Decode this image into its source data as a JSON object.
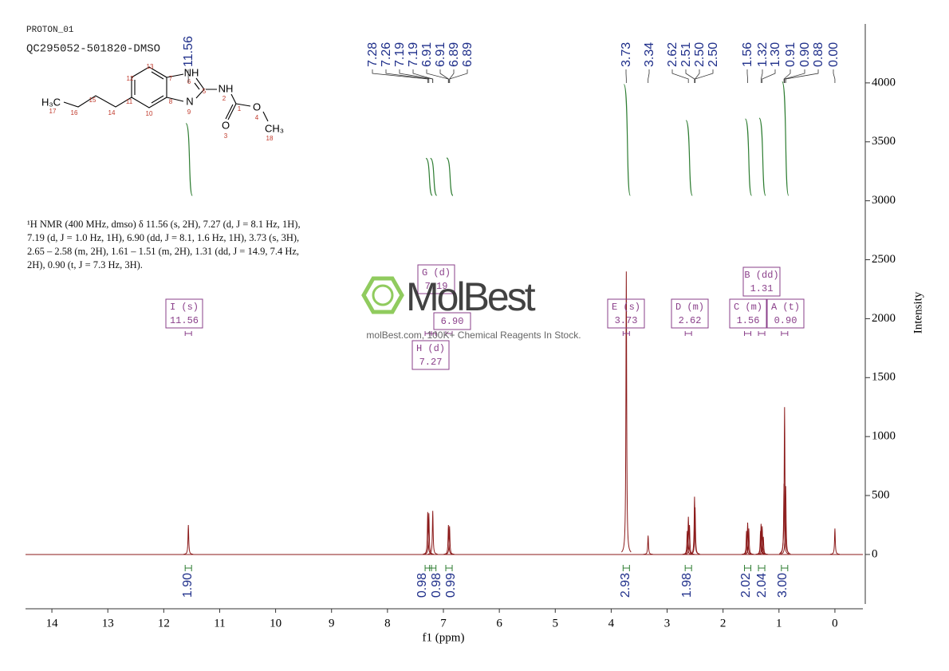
{
  "header": {
    "experiment": "PROTON_01",
    "sample": "QC295052-501820-DMSO"
  },
  "structure": {
    "atoms": [
      "NH",
      "N",
      "NH",
      "O",
      "O",
      "CH₃",
      "H₃C"
    ],
    "numbers": [
      "13",
      "12",
      "11",
      "10",
      "8",
      "7",
      "6",
      "5",
      "9",
      "2",
      "1",
      "3",
      "4",
      "18",
      "14",
      "15",
      "16",
      "17"
    ]
  },
  "nmr_description": "¹H NMR (400 MHz, dmso) δ 11.56 (s, 2H), 7.27 (d, J = 8.1 Hz, 1H), 7.19 (d, J = 1.0 Hz, 1H), 6.90 (dd, J = 8.1, 1.6 Hz, 1H), 3.73 (s, 3H), 2.65 – 2.58 (m, 2H), 1.61 – 1.51 (m, 2H), 1.31 (dd, J = 14.9, 7.4 Hz, 2H), 0.90 (t, J = 7.3 Hz, 3H).",
  "watermark": {
    "brand": "MolBest",
    "tagline": "molBest.com, 100K+ Chemical Reagents In Stock."
  },
  "chart_data": {
    "type": "nmr",
    "xlabel": "f1 (ppm)",
    "ylabel": "Intensity",
    "xlim": [
      14.5,
      -0.5
    ],
    "ylim": [
      -420,
      4500
    ],
    "xticks": [
      14,
      13,
      12,
      11,
      10,
      9,
      8,
      7,
      6,
      5,
      4,
      3,
      2,
      1,
      0
    ],
    "yticks": [
      0,
      500,
      1000,
      1500,
      2000,
      2500,
      3000,
      3500,
      4000
    ],
    "color": "#8b1a1a",
    "integral_color": "#2e7d32",
    "label_color": "#1f2f8a",
    "box_color": "#8a3f8a",
    "peaks": {
      "x": [
        11.56,
        7.28,
        7.26,
        7.19,
        6.91,
        6.89,
        3.73,
        3.34,
        2.64,
        2.62,
        2.6,
        2.51,
        2.5,
        1.58,
        1.56,
        1.54,
        1.33,
        1.32,
        1.3,
        1.28,
        0.91,
        0.9,
        0.88,
        0.0
      ],
      "values": [
        250,
        360,
        350,
        370,
        250,
        240,
        2400,
        160,
        200,
        320,
        250,
        490,
        400,
        200,
        270,
        220,
        200,
        260,
        240,
        150,
        600,
        1250,
        580,
        220
      ]
    },
    "peak_labels": [
      11.56,
      7.28,
      7.26,
      7.19,
      7.19,
      6.91,
      6.91,
      6.89,
      6.89,
      3.73,
      3.34,
      2.62,
      2.51,
      {
        "value": 2.5,
        "label": "2.50"
      },
      {
        "value": 2.5,
        "label": "2.50"
      },
      1.56,
      1.32,
      {
        "value": 1.3,
        "label": "1.30"
      },
      0.91,
      {
        "value": 0.9,
        "label": "0.90"
      },
      0.88,
      {
        "value": 0,
        "label": "0.00"
      }
    ],
    "integrals": {
      "x": [
        11.56,
        7.27,
        7.19,
        6.9,
        3.73,
        2.62,
        1.56,
        1.31,
        0.9
      ],
      "values": [
        1.9,
        0.98,
        0.98,
        0.99,
        2.93,
        1.98,
        2.02,
        2.04,
        3
      ],
      "value_labels": [
        "1.90",
        "0.98",
        "0.98",
        "0.99",
        "2.93",
        "1.98",
        "2.02",
        "2.04",
        "3.00"
      ]
    },
    "multiplets": [
      {
        "name": "I (s)",
        "value": 11.56
      },
      {
        "name": "G (d)",
        "value": 7.19
      },
      {
        "name": "H (d)",
        "value": 7.27
      },
      {
        "value": 6.9,
        "value_label": "6.90"
      },
      {
        "name": "E (s)",
        "value": 3.73
      },
      {
        "name": "D (m)",
        "value": 2.62
      },
      {
        "name": "B (dd)",
        "value": 1.31
      },
      {
        "name": "C (m)",
        "value": 1.56
      },
      {
        "name": "A (t)",
        "value": 0.9,
        "value_label": "0.90"
      }
    ]
  }
}
